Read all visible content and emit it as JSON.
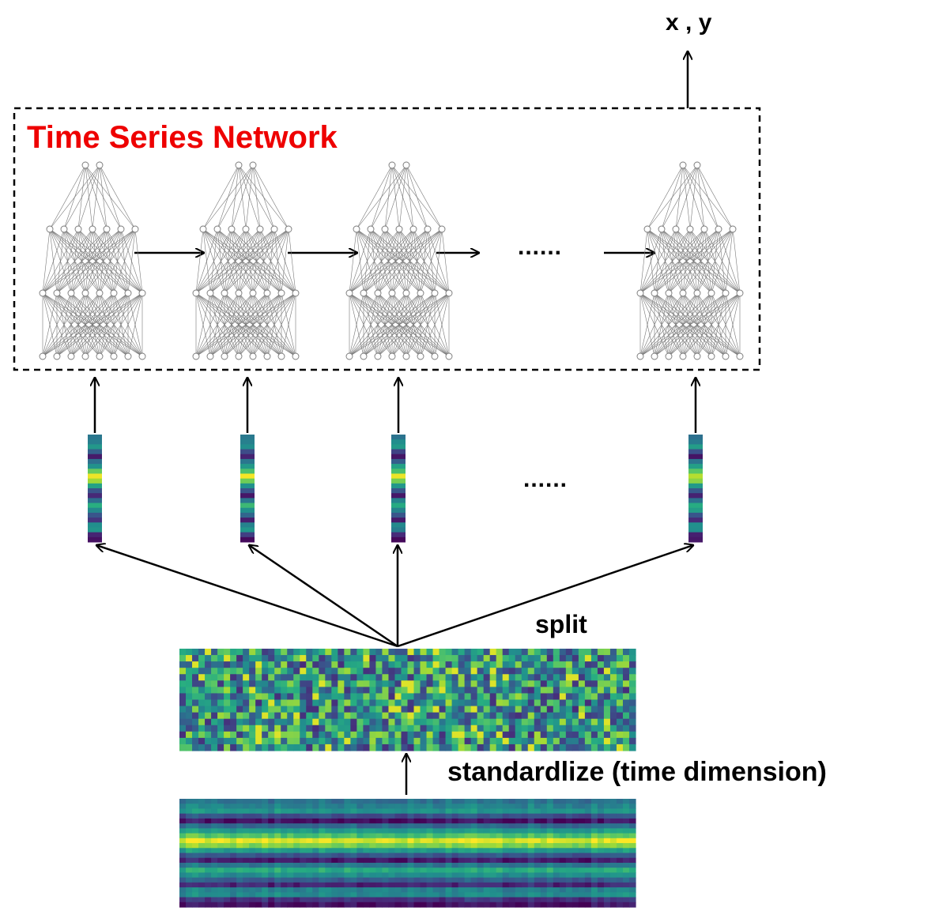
{
  "diagram": {
    "output_label": "x , y",
    "network_title": "Time Series Network",
    "ellipsis_network": "......",
    "ellipsis_slices": "......",
    "split_label": "split",
    "standardize_label": "standardlize (time dimension)",
    "network_title_color": "#ee0000",
    "network_layers": [
      8,
      8,
      7,
      2
    ],
    "network_count_drawn": 4,
    "heatmap_colormap": "viridis"
  }
}
